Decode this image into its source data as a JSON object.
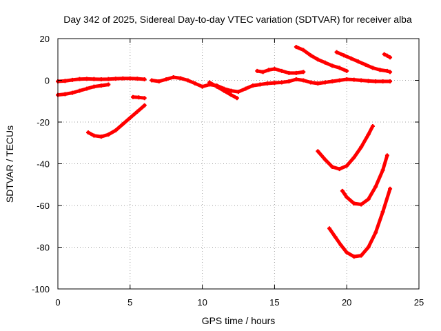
{
  "chart_data": {
    "type": "line",
    "title": "Day 342 of 2025, Sidereal Day-to-day VTEC variation (SDTVAR) for receiver alba",
    "xlabel": "GPS time / hours",
    "ylabel": "SDTVAR / TECUs",
    "xlim": [
      0,
      25
    ],
    "ylim": [
      -100,
      20
    ],
    "xticks": [
      "0",
      "5",
      "10",
      "15",
      "20",
      "25"
    ],
    "yticks": [
      "20",
      "0",
      "-20",
      "-40",
      "-60",
      "-80",
      "-100"
    ],
    "grid": true,
    "grid_style": "dotted",
    "legend": "none",
    "series_color": "#ff0000",
    "series": [
      {
        "x": [
          0.0,
          0.5,
          1.0,
          1.5,
          2.0,
          2.5,
          3.0,
          3.5,
          4.0,
          4.5,
          5.0,
          5.5,
          6.0
        ],
        "y": [
          -0.5,
          -0.3,
          0.2,
          0.6,
          0.7,
          0.6,
          0.5,
          0.6,
          0.8,
          0.9,
          0.9,
          0.8,
          0.5
        ]
      },
      {
        "x": [
          0.0,
          0.5,
          1.0,
          1.5,
          2.0,
          2.5,
          3.0,
          3.5
        ],
        "y": [
          -7.0,
          -6.6,
          -6.0,
          -5.0,
          -4.0,
          -3.0,
          -2.5,
          -2.0
        ]
      },
      {
        "x": [
          2.1,
          2.5,
          3.0,
          3.5,
          4.0,
          4.5,
          5.0,
          5.5,
          6.0
        ],
        "y": [
          -25.0,
          -26.5,
          -27.0,
          -26.0,
          -24.0,
          -21.0,
          -18.0,
          -15.0,
          -12.0
        ]
      },
      {
        "x": [
          5.2,
          5.6,
          6.0
        ],
        "y": [
          -8.0,
          -8.2,
          -8.5
        ]
      },
      {
        "x": [
          6.5,
          7.0,
          7.5,
          8.0,
          8.5,
          9.0,
          9.5,
          10.0,
          10.5,
          11.0,
          11.5,
          12.0,
          12.5,
          13.0,
          13.5,
          14.0,
          14.5,
          15.0,
          15.5,
          16.0,
          16.5,
          17.0,
          17.5,
          18.0,
          18.5,
          19.0,
          19.5,
          20.0,
          20.5,
          21.0,
          21.5,
          22.0,
          22.5,
          23.0
        ],
        "y": [
          0.0,
          -0.5,
          0.5,
          1.5,
          1.0,
          0.0,
          -1.5,
          -3.0,
          -2.0,
          -2.5,
          -4.0,
          -5.0,
          -5.5,
          -4.0,
          -2.5,
          -2.0,
          -1.5,
          -1.2,
          -1.0,
          -0.5,
          0.5,
          0.0,
          -1.0,
          -1.5,
          -1.0,
          -0.5,
          0.0,
          0.5,
          0.3,
          0.0,
          -0.3,
          -0.5,
          -0.5,
          -0.5
        ]
      },
      {
        "x": [
          10.5,
          11.0,
          11.5,
          12.0,
          12.4
        ],
        "y": [
          -1.0,
          -3.0,
          -5.0,
          -7.0,
          -8.5
        ]
      },
      {
        "x": [
          13.8,
          14.2,
          14.6,
          15.0,
          15.5,
          16.0,
          16.5,
          17.0
        ],
        "y": [
          4.5,
          4.0,
          5.0,
          5.5,
          4.5,
          3.5,
          3.5,
          4.0
        ]
      },
      {
        "x": [
          16.5,
          17.0,
          17.5,
          18.0,
          18.5,
          19.0,
          19.5,
          20.0
        ],
        "y": [
          16.0,
          14.5,
          12.0,
          10.0,
          8.5,
          7.0,
          6.0,
          4.5
        ]
      },
      {
        "x": [
          19.3,
          19.8,
          20.3,
          20.8,
          21.3,
          21.8,
          22.3,
          22.8,
          23.0
        ],
        "y": [
          13.5,
          12.0,
          10.5,
          9.0,
          7.5,
          6.0,
          5.0,
          4.5,
          4.0
        ]
      },
      {
        "x": [
          22.6,
          22.8,
          23.0
        ],
        "y": [
          12.5,
          11.8,
          11.0
        ]
      },
      {
        "x": [
          18.0,
          18.5,
          19.0,
          19.5,
          20.0,
          20.5,
          21.0,
          21.5,
          21.8
        ],
        "y": [
          -34.0,
          -38.0,
          -41.5,
          -42.5,
          -41.0,
          -37.0,
          -32.0,
          -26.0,
          -22.0
        ]
      },
      {
        "x": [
          19.7,
          20.0,
          20.5,
          21.0,
          21.5,
          22.0,
          22.5,
          22.8
        ],
        "y": [
          -53.0,
          -56.0,
          -59.0,
          -59.5,
          -57.0,
          -51.0,
          -43.0,
          -36.0
        ]
      },
      {
        "x": [
          18.8,
          19.2,
          19.6,
          20.0,
          20.5,
          21.0,
          21.5,
          22.0,
          22.5,
          23.0
        ],
        "y": [
          -71.0,
          -75.0,
          -79.0,
          -82.5,
          -84.5,
          -84.0,
          -80.0,
          -73.0,
          -63.0,
          -52.0
        ]
      }
    ]
  }
}
